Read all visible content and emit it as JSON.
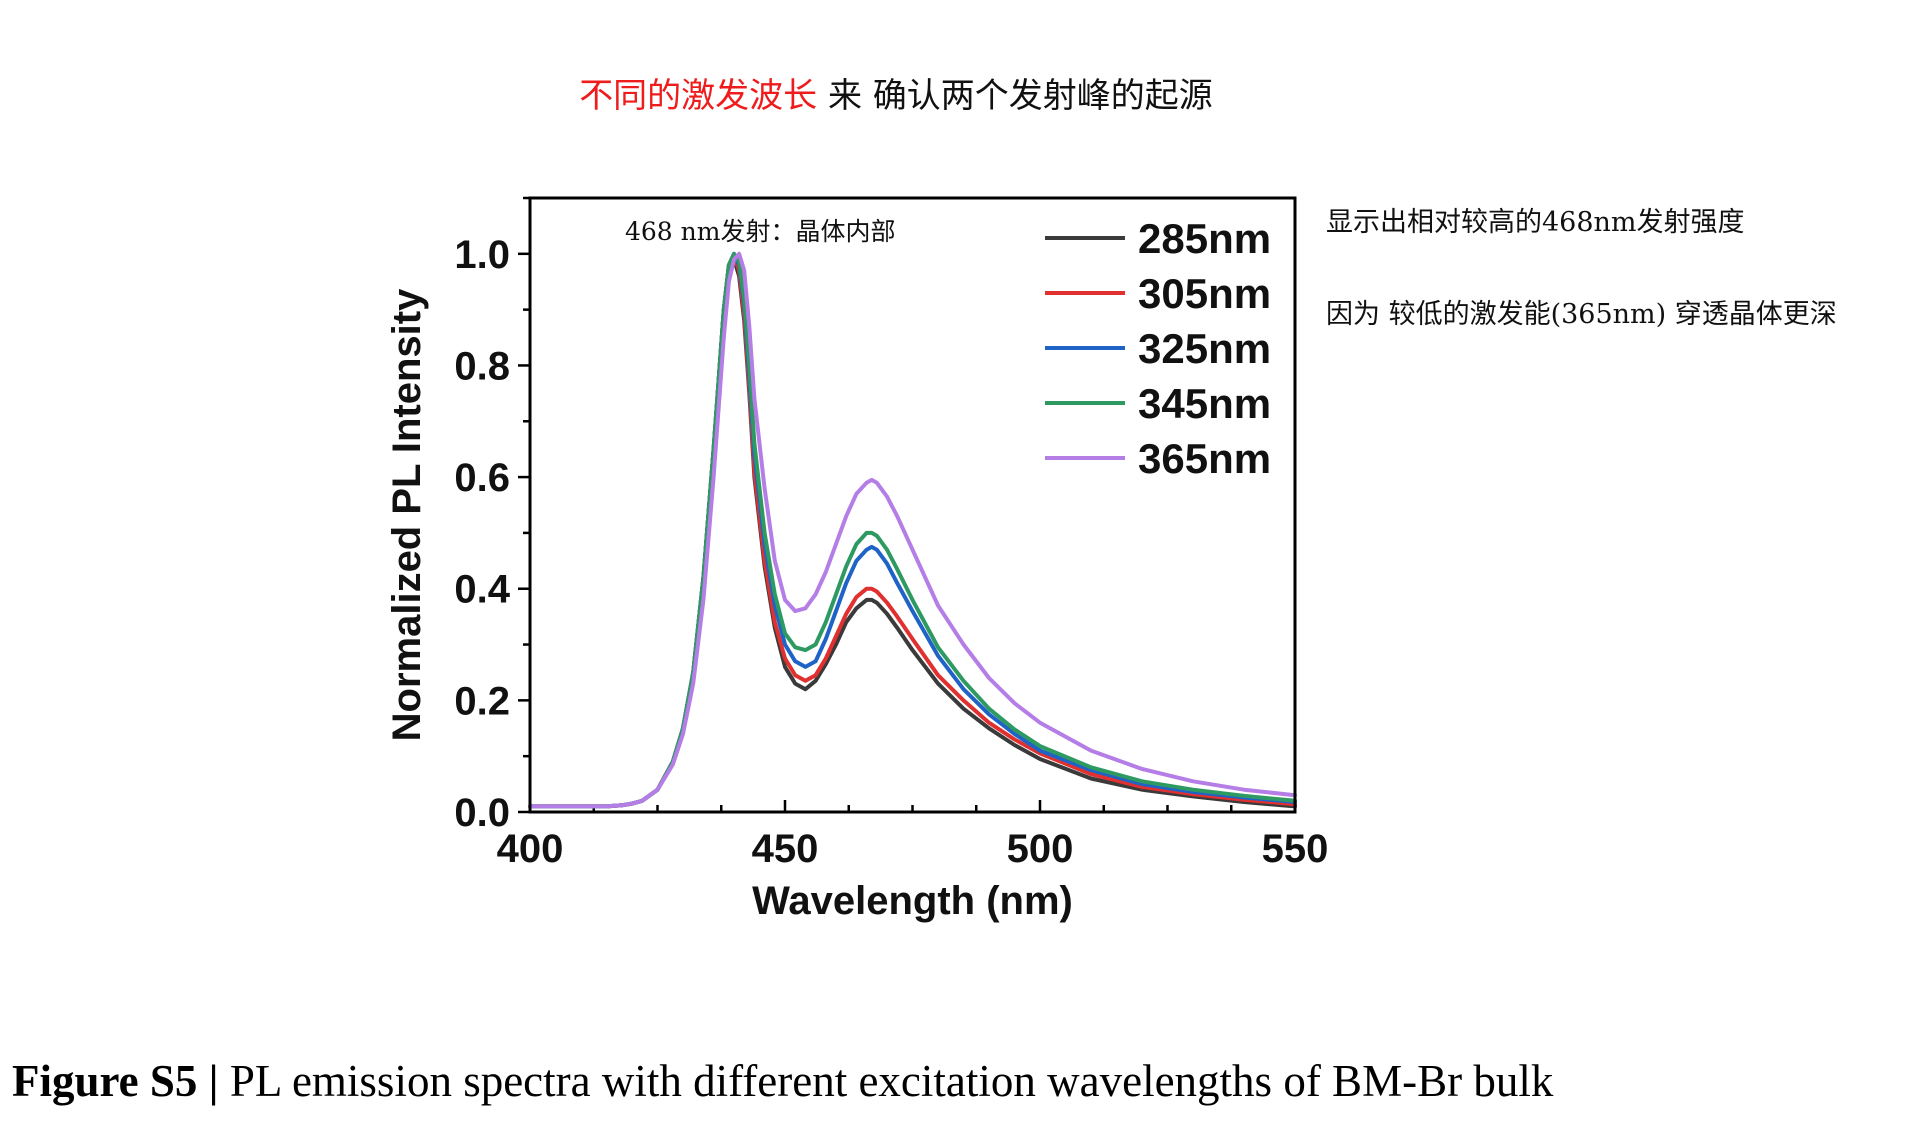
{
  "heading": {
    "highlight": "不同的激发波长",
    "rest": " 来 确认两个发射峰的起源"
  },
  "annotations": {
    "inside_plot": "468 nm发射：晶体内部",
    "right_note_1": "显示出相对较高的468nm发射强度",
    "right_note_2": "因为 较低的激发能(365nm) 穿透晶体更深"
  },
  "caption": {
    "label": "Figure S5 |",
    "text": " PL emission spectra with different excitation wavelengths of BM-Br bulk"
  },
  "colors": {
    "heading_highlight": "#ee1c1c"
  },
  "chart_data": {
    "type": "line",
    "title": "",
    "xlabel": "Wavelength (nm)",
    "ylabel": "Normalized PL Intensity",
    "xlim": [
      400,
      550
    ],
    "ylim": [
      0,
      1.1
    ],
    "xticks": [
      400,
      450,
      500,
      550
    ],
    "yticks": [
      0.0,
      0.2,
      0.4,
      0.6,
      0.8,
      1.0
    ],
    "xtick_labels": [
      "400",
      "450",
      "500",
      "550"
    ],
    "ytick_labels": [
      "0.0",
      "0.2",
      "0.4",
      "0.6",
      "0.8",
      "1.0"
    ],
    "grid": false,
    "legend_position": "top-right",
    "x": [
      400,
      410,
      415,
      418,
      420,
      422,
      425,
      428,
      430,
      432,
      434,
      436,
      438,
      439,
      440,
      441,
      442,
      443,
      444,
      446,
      448,
      450,
      452,
      454,
      456,
      458,
      460,
      462,
      464,
      466,
      467,
      468,
      470,
      472,
      475,
      480,
      485,
      490,
      495,
      500,
      510,
      520,
      530,
      540,
      550
    ],
    "series": [
      {
        "name": "285nm",
        "color": "#3a3a3a",
        "values": [
          0.01,
          0.01,
          0.01,
          0.012,
          0.015,
          0.02,
          0.04,
          0.09,
          0.15,
          0.25,
          0.42,
          0.65,
          0.9,
          0.98,
          0.99,
          0.96,
          0.88,
          0.75,
          0.6,
          0.44,
          0.33,
          0.26,
          0.23,
          0.22,
          0.235,
          0.265,
          0.3,
          0.34,
          0.365,
          0.38,
          0.38,
          0.375,
          0.355,
          0.33,
          0.29,
          0.23,
          0.185,
          0.15,
          0.12,
          0.095,
          0.06,
          0.04,
          0.028,
          0.018,
          0.01
        ]
      },
      {
        "name": "305nm",
        "color": "#e03030",
        "values": [
          0.01,
          0.01,
          0.01,
          0.012,
          0.015,
          0.02,
          0.04,
          0.09,
          0.15,
          0.25,
          0.42,
          0.65,
          0.9,
          0.98,
          0.995,
          0.97,
          0.89,
          0.76,
          0.61,
          0.45,
          0.34,
          0.275,
          0.245,
          0.235,
          0.245,
          0.275,
          0.315,
          0.355,
          0.385,
          0.4,
          0.4,
          0.395,
          0.375,
          0.35,
          0.31,
          0.245,
          0.2,
          0.16,
          0.13,
          0.105,
          0.068,
          0.045,
          0.032,
          0.022,
          0.014
        ]
      },
      {
        "name": "325nm",
        "color": "#1f63c7",
        "values": [
          0.01,
          0.01,
          0.01,
          0.012,
          0.015,
          0.02,
          0.04,
          0.09,
          0.15,
          0.25,
          0.42,
          0.65,
          0.9,
          0.98,
          1.0,
          0.98,
          0.91,
          0.78,
          0.64,
          0.48,
          0.37,
          0.3,
          0.27,
          0.26,
          0.27,
          0.31,
          0.36,
          0.41,
          0.45,
          0.47,
          0.475,
          0.47,
          0.445,
          0.41,
          0.36,
          0.28,
          0.22,
          0.175,
          0.14,
          0.11,
          0.075,
          0.05,
          0.036,
          0.026,
          0.018
        ]
      },
      {
        "name": "345nm",
        "color": "#2e9a62",
        "values": [
          0.01,
          0.01,
          0.01,
          0.012,
          0.015,
          0.02,
          0.04,
          0.09,
          0.15,
          0.25,
          0.42,
          0.65,
          0.9,
          0.98,
          1.0,
          0.985,
          0.92,
          0.8,
          0.66,
          0.5,
          0.39,
          0.32,
          0.295,
          0.29,
          0.3,
          0.34,
          0.39,
          0.44,
          0.48,
          0.5,
          0.5,
          0.495,
          0.47,
          0.435,
          0.38,
          0.295,
          0.235,
          0.185,
          0.148,
          0.118,
          0.08,
          0.055,
          0.04,
          0.029,
          0.02
        ]
      },
      {
        "name": "365nm",
        "color": "#b57ee6",
        "values": [
          0.01,
          0.01,
          0.01,
          0.012,
          0.015,
          0.02,
          0.04,
          0.085,
          0.14,
          0.23,
          0.38,
          0.6,
          0.85,
          0.95,
          0.99,
          1.0,
          0.97,
          0.87,
          0.74,
          0.58,
          0.45,
          0.38,
          0.36,
          0.365,
          0.39,
          0.43,
          0.48,
          0.53,
          0.57,
          0.59,
          0.595,
          0.59,
          0.565,
          0.53,
          0.47,
          0.37,
          0.3,
          0.24,
          0.195,
          0.16,
          0.11,
          0.077,
          0.055,
          0.04,
          0.03
        ]
      }
    ]
  }
}
